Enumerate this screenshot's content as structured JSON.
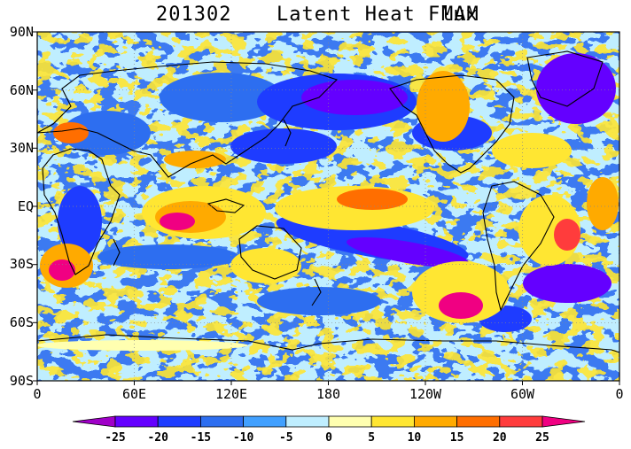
{
  "title": {
    "date": "201302",
    "variable": "Latent Heat Flux",
    "season": "MAM"
  },
  "map": {
    "projection": "cylindrical equidistant, 0 to 360E",
    "lat_labels": [
      "90N",
      "60N",
      "30N",
      "EQ",
      "30S",
      "60S",
      "90S"
    ],
    "lon_labels": [
      "0",
      "60E",
      "120E",
      "180",
      "120W",
      "60W",
      "0"
    ],
    "field": "latent heat flux anomaly"
  },
  "colorbar": {
    "labels": [
      "-25",
      "-20",
      "-15",
      "-10",
      "-5",
      "0",
      "5",
      "10",
      "15",
      "20",
      "25"
    ],
    "colors": [
      "#a000c8",
      "#6400ff",
      "#1e3cff",
      "#2d6ef0",
      "#41a0ff",
      "#bfeeff",
      "#ffffb0",
      "#ffe632",
      "#ffaa00",
      "#ff6e00",
      "#ff3c3c",
      "#f00082"
    ],
    "extend": "both"
  }
}
